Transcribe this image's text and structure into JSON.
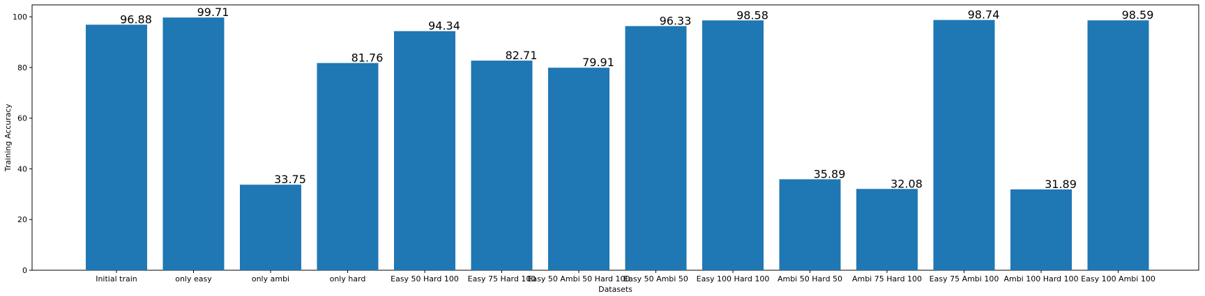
{
  "chart_data": {
    "type": "bar",
    "categories": [
      "Initial train",
      "only easy",
      "only ambi",
      "only hard",
      "Easy 50 Hard 100",
      "Easy 75 Hard 100",
      "Easy 50 Ambi 50 Hard 100",
      "Easy 50 Ambi 50",
      "Easy 100 Hard 100",
      "Ambi 50 Hard 50",
      "Ambi 75 Hard 100",
      "Easy 75 Ambi 100",
      "Ambi 100 Hard 100",
      "Easy 100 Ambi 100"
    ],
    "values": [
      96.88,
      99.71,
      33.75,
      81.76,
      94.34,
      82.71,
      79.91,
      96.33,
      98.58,
      35.89,
      32.08,
      98.74,
      31.89,
      98.59
    ],
    "value_labels": [
      "96.88",
      "99.71",
      "33.75",
      "81.76",
      "94.34",
      "82.71",
      "79.91",
      "96.33",
      "98.58",
      "35.89",
      "32.08",
      "98.74",
      "31.89",
      "98.59"
    ],
    "xlabel": "Datasets",
    "ylabel": "Training Accuracy",
    "ylim": [
      0,
      104.7
    ],
    "yticks": [
      0,
      20,
      40,
      60,
      80,
      100
    ],
    "ytick_labels": [
      "0",
      "20",
      "40",
      "60",
      "80",
      "100"
    ],
    "grid": false,
    "bar_color": "#1f77b4"
  }
}
